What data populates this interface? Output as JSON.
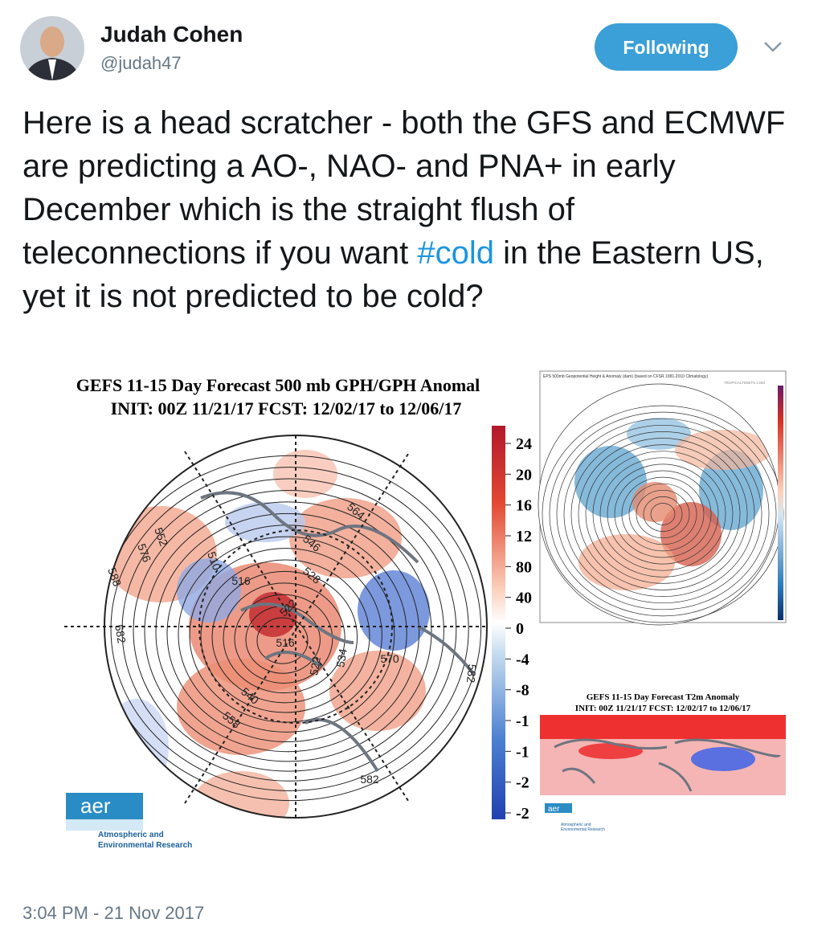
{
  "user": {
    "name": "Judah Cohen",
    "handle": "@judah47"
  },
  "follow_button": "Following",
  "tweet": {
    "text_before": "Here is a head scratcher - both the GFS and ECMWF are predicting a AO-, NAO- and PNA+ in early December which is the straight flush of teleconnections if you want ",
    "hashtag": "#cold",
    "text_after": " in the Eastern US, yet it is not predicted to be cold?"
  },
  "images": [
    {
      "title": "GEFS 11-15 Day Forecast 500 mb GPH/GPH Anomal",
      "subtitle": "INIT: 00Z 11/21/17   FCST: 12/02/17 to 12/06/17",
      "colorbar_labels": [
        "24",
        "20",
        "16",
        "12",
        "80",
        "40",
        "0",
        "-4",
        "-8",
        "-1",
        "-1",
        "-2",
        "-2"
      ],
      "contour_labels": [
        "564",
        "546",
        "528",
        "516",
        "510",
        "522",
        "516",
        "522",
        "534",
        "570",
        "540",
        "558",
        "582",
        "588",
        "576",
        "552",
        "582",
        "582"
      ],
      "logo": "aer",
      "logo_caption": [
        "Atmospheric and",
        "Environmental Research"
      ]
    },
    {
      "title": "EPS 500mb Geopotential Height & Anomaly (dam) (based on CFSR 1981-2010 Climatology)",
      "credit": "TROPICALTIDBITS.COM"
    },
    {
      "title": "GEFS 11-15 Day Forecast T2m Anomaly",
      "subtitle": "INIT: 00Z 11/21/17    FCST: 12/02/17 to 12/06/17",
      "logo": "aer",
      "logo_caption": [
        "Atmospheric and",
        "Environmental Research"
      ]
    }
  ],
  "timestamp": "3:04 PM - 21 Nov 2017"
}
